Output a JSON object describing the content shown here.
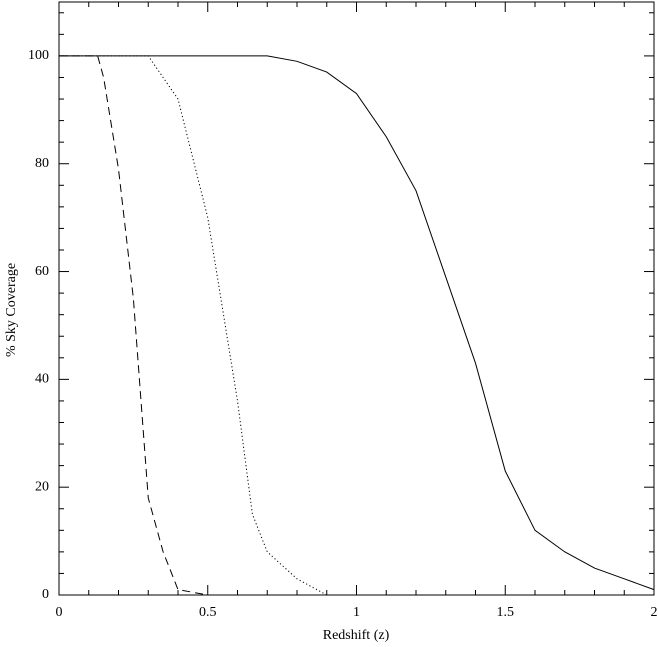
{
  "chart_data": {
    "type": "line",
    "xlabel": "Redshift (z)",
    "ylabel": "% Sky Coverage",
    "xlim": [
      0,
      2
    ],
    "ylim": [
      0,
      110
    ],
    "xticks": [
      0,
      0.5,
      1,
      1.5,
      2
    ],
    "yticks": [
      0,
      20,
      40,
      60,
      80,
      100
    ],
    "xminorticks": [
      0.1,
      0.2,
      0.3,
      0.4,
      0.6,
      0.7,
      0.8,
      0.9,
      1.1,
      1.2,
      1.3,
      1.4,
      1.6,
      1.7,
      1.8,
      1.9
    ],
    "yminorticks": [
      4,
      8,
      12,
      16,
      24,
      28,
      32,
      36,
      44,
      48,
      52,
      56,
      64,
      68,
      72,
      76,
      84,
      88,
      92,
      96,
      104,
      108
    ],
    "series": [
      {
        "color": "#000000",
        "style": "solid",
        "x": [
          0,
          0.7,
          0.8,
          0.9,
          1.0,
          1.1,
          1.2,
          1.3,
          1.4,
          1.5,
          1.6,
          1.7,
          1.8,
          1.9,
          2.0
        ],
        "values": [
          100,
          100,
          99,
          97,
          93,
          85,
          75,
          59,
          43,
          23,
          12,
          8,
          5,
          3,
          1
        ]
      },
      {
        "color": "#000000",
        "style": "dotted",
        "x": [
          0,
          0.3,
          0.4,
          0.5,
          0.6,
          0.65,
          0.7,
          0.8,
          0.9
        ],
        "values": [
          100,
          100,
          92,
          70,
          36,
          15,
          8,
          3,
          0
        ]
      },
      {
        "color": "#000000",
        "style": "dashed",
        "x": [
          0,
          0.13,
          0.15,
          0.2,
          0.25,
          0.3,
          0.35,
          0.4,
          0.5
        ],
        "values": [
          100,
          100,
          96,
          79,
          55,
          18,
          8,
          1,
          0
        ]
      }
    ]
  }
}
